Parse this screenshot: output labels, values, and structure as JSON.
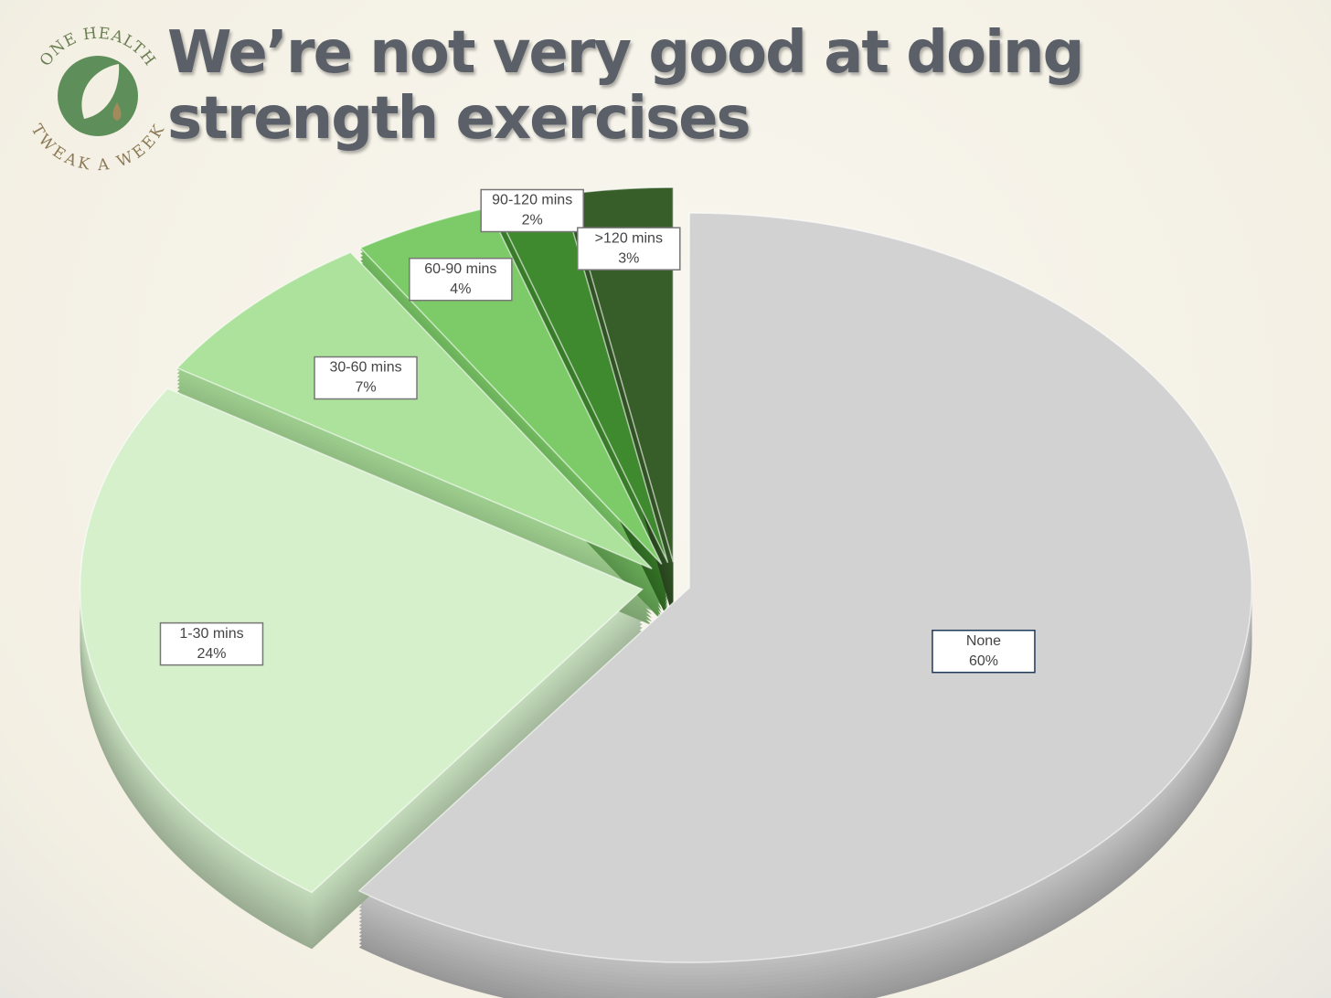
{
  "logo": {
    "top": "ONE HEALTH",
    "bottom": "TWEAK A WEEK"
  },
  "chart_data": {
    "type": "pie",
    "title": "We’re not very good at doing strength exercises",
    "categories": [
      "None",
      "1-30 mins",
      "30-60 mins",
      "60-90 mins",
      "90-120 mins",
      ">120 mins"
    ],
    "values": [
      60,
      24,
      7,
      4,
      2,
      3
    ],
    "value_labels": [
      "60%",
      "24%",
      "7%",
      "4%",
      "2%",
      "3%"
    ],
    "colors": [
      "#d2d2d2",
      "#d6f0cc",
      "#ade29c",
      "#7ccb68",
      "#3f8a2e",
      "#375e29"
    ]
  }
}
